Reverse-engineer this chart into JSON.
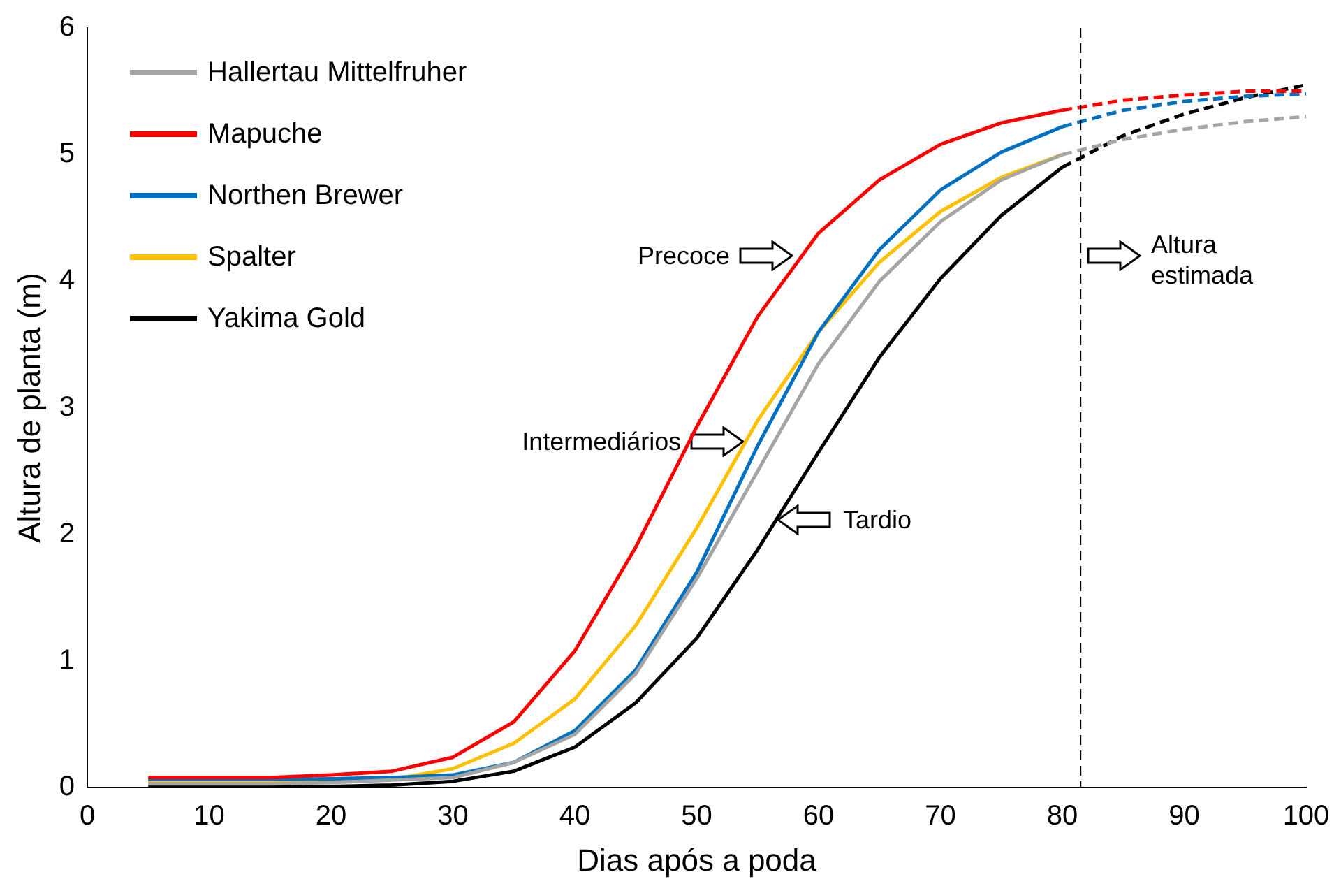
{
  "chart_data": {
    "type": "line",
    "xlabel": "Dias após a poda",
    "ylabel": "Altura de planta (m)",
    "xlim": [
      0,
      100
    ],
    "ylim": [
      0,
      6
    ],
    "xticks": [
      0,
      10,
      20,
      30,
      40,
      50,
      60,
      70,
      80,
      90,
      100
    ],
    "yticks": [
      0,
      1,
      2,
      3,
      4,
      5,
      6
    ],
    "grid": false,
    "legend": "top left",
    "marker": "none",
    "x": [
      5,
      10,
      15,
      20,
      25,
      30,
      35,
      40,
      45,
      50,
      55,
      60,
      65,
      70,
      75,
      80
    ],
    "series": [
      {
        "name": "Hallertau Mittelfruher",
        "color": "#a5a5a5",
        "line_style": "solid",
        "values": [
          0.03,
          0.03,
          0.03,
          0.04,
          0.06,
          0.08,
          0.2,
          0.42,
          0.9,
          1.65,
          2.5,
          3.35,
          4.0,
          4.47,
          4.8,
          5.0
        ]
      },
      {
        "name": "Mapuche",
        "color": "#ff0000",
        "line_style": "solid",
        "values": [
          0.08,
          0.08,
          0.08,
          0.1,
          0.13,
          0.24,
          0.52,
          1.08,
          1.9,
          2.85,
          3.72,
          4.38,
          4.8,
          5.08,
          5.25,
          5.35
        ]
      },
      {
        "name": "Northen Brewer",
        "color": "#0070c0",
        "line_style": "solid",
        "values": [
          0.065,
          0.065,
          0.065,
          0.07,
          0.08,
          0.1,
          0.2,
          0.45,
          0.93,
          1.7,
          2.7,
          3.6,
          4.25,
          4.72,
          5.02,
          5.22
        ]
      },
      {
        "name": "Spalter",
        "color": "#ffc000",
        "line_style": "solid",
        "values": [
          0.045,
          0.045,
          0.05,
          0.055,
          0.065,
          0.15,
          0.35,
          0.7,
          1.28,
          2.05,
          2.9,
          3.6,
          4.15,
          4.55,
          4.82,
          5.0
        ]
      },
      {
        "name": "Yakima Gold",
        "color": "#000000",
        "line_style": "solid",
        "values": [
          0.01,
          0.01,
          0.01,
          0.01,
          0.02,
          0.05,
          0.13,
          0.32,
          0.67,
          1.18,
          1.88,
          2.65,
          3.4,
          4.02,
          4.52,
          4.9
        ]
      },
      {
        "color": "#a5a5a5",
        "line_style": "dashed",
        "x": [
          80,
          85,
          90,
          95,
          100
        ],
        "values": [
          5.0,
          5.12,
          5.2,
          5.26,
          5.3
        ]
      },
      {
        "color": "#ff0000",
        "line_style": "dashed",
        "x": [
          80,
          85,
          90,
          95,
          100
        ],
        "values": [
          5.35,
          5.43,
          5.47,
          5.5,
          5.5
        ]
      },
      {
        "color": "#0070c0",
        "line_style": "dashed",
        "x": [
          80,
          85,
          90,
          95,
          100
        ],
        "values": [
          5.22,
          5.35,
          5.42,
          5.46,
          5.48
        ]
      },
      {
        "color": "#000000",
        "line_style": "dashed",
        "x": [
          80,
          85,
          90,
          95,
          100
        ],
        "values": [
          4.9,
          5.15,
          5.32,
          5.45,
          5.55
        ]
      }
    ],
    "ref_lines": [
      {
        "axis": "x",
        "value": 81.5,
        "color": "#000000",
        "line_style": "dashed"
      }
    ],
    "annotations": [
      {
        "text": "Precoce",
        "x": 58,
        "y": 4.2
      },
      {
        "text": "Intermediários",
        "x": 54,
        "y": 2.73
      },
      {
        "text": "Tardio",
        "x": 56.5,
        "y": 2.11
      },
      {
        "text": "Altura estimada",
        "x": 82,
        "y": 4.2
      }
    ]
  }
}
